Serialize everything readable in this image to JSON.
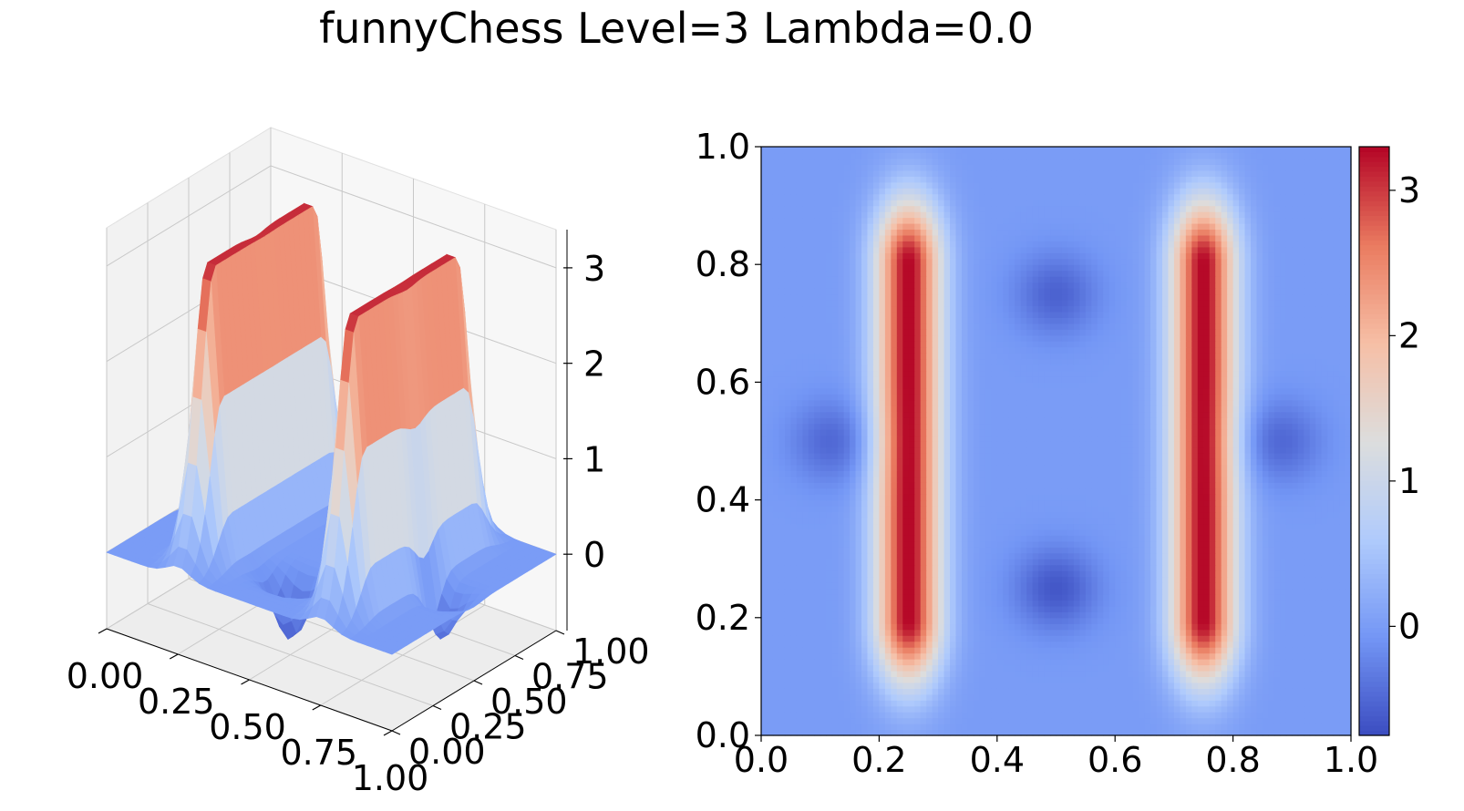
{
  "figure": {
    "title": "funnyChess Level=3 Lambda=0.0"
  },
  "chart_data": [
    {
      "type": "surface3d",
      "title": "",
      "colormap": "coolwarm",
      "colormap_stops": [
        "#3b4cc0",
        "#7396f5",
        "#b0cbfc",
        "#dcdddd",
        "#f6bfa6",
        "#ea7b60",
        "#b40426"
      ],
      "pane_color": "#f2f2f2",
      "grid": true,
      "x_ticks": [
        "0.00",
        "0.25",
        "0.50",
        "0.75",
        "1.00"
      ],
      "y_ticks": [
        "0.00",
        "0.25",
        "0.50",
        "0.75",
        "1.00"
      ],
      "z_ticks": [
        "0",
        "1",
        "2",
        "3"
      ],
      "xlim": [
        0,
        1
      ],
      "ylim": [
        0,
        1
      ],
      "zlim": [
        -0.8,
        3.4
      ],
      "description_of_surface": "two ridges along x=0.25 and x=0.75 peaking near 3.3",
      "peaks": [
        {
          "x": 0.25,
          "y0": 0.2,
          "y1": 0.8,
          "height": 3.3
        },
        {
          "x": 0.75,
          "y0": 0.2,
          "y1": 0.8,
          "height": 3.3
        }
      ],
      "dips": [
        {
          "x": 0.5,
          "y": 0.25,
          "depth": -0.65
        },
        {
          "x": 0.5,
          "y": 0.75,
          "depth": -0.55
        },
        {
          "x": 0.12,
          "y": 0.5,
          "depth": -0.5
        },
        {
          "x": 0.88,
          "y": 0.5,
          "depth": -0.5
        }
      ]
    },
    {
      "type": "heatmap",
      "title": "",
      "colormap": "coolwarm",
      "xlim": [
        0,
        1
      ],
      "ylim": [
        0,
        1
      ],
      "x_ticks": [
        "0.0",
        "0.2",
        "0.4",
        "0.6",
        "0.8",
        "1.0"
      ],
      "y_ticks": [
        "0.0",
        "0.2",
        "0.4",
        "0.6",
        "0.8",
        "1.0"
      ],
      "colorbar": {
        "min": -0.75,
        "max": 3.3,
        "ticks": [
          0,
          1,
          2,
          3
        ],
        "tick_labels": [
          "0",
          "1",
          "2",
          "3"
        ]
      },
      "peaks": [
        {
          "x": 0.25,
          "y0": 0.2,
          "y1": 0.8,
          "height": 3.3
        },
        {
          "x": 0.75,
          "y0": 0.2,
          "y1": 0.8,
          "height": 3.3
        }
      ],
      "dips": [
        {
          "x": 0.5,
          "y": 0.25,
          "depth": -0.65
        },
        {
          "x": 0.5,
          "y": 0.75,
          "depth": -0.55
        },
        {
          "x": 0.12,
          "y": 0.5,
          "depth": -0.5
        },
        {
          "x": 0.88,
          "y": 0.5,
          "depth": -0.5
        }
      ]
    }
  ]
}
